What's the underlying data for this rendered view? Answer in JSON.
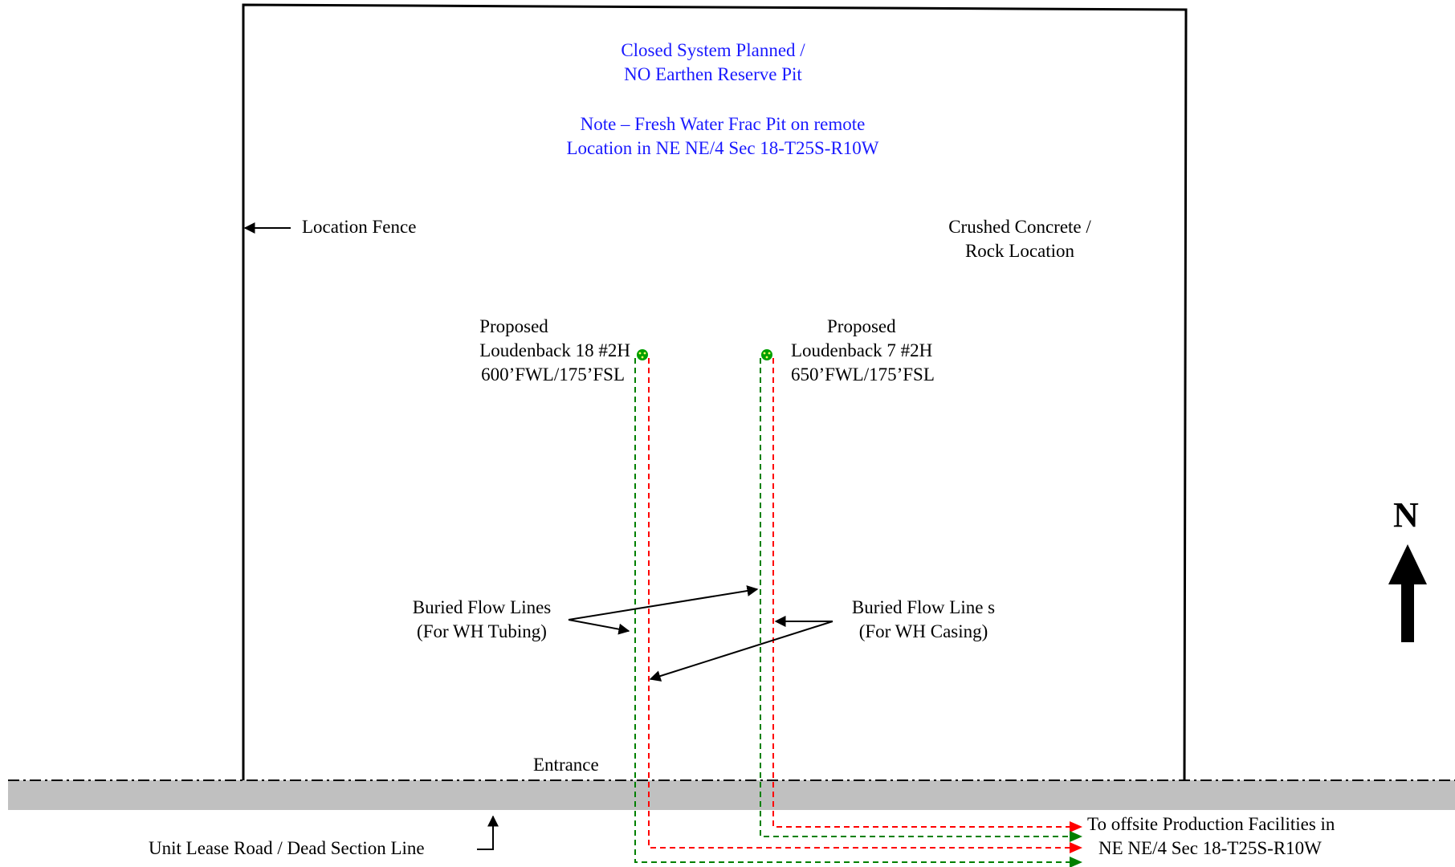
{
  "title_note": {
    "line1": "Closed System Planned /",
    "line2": "NO Earthen Reserve Pit",
    "line3": "Note – Fresh Water Frac Pit on remote",
    "line4": "Location in NE NE/4 Sec 18-T25S-R10W"
  },
  "labels": {
    "location_fence": "Location Fence",
    "surface_line1": "Crushed Concrete /",
    "surface_line2": "Rock Location",
    "entrance": "Entrance",
    "road": "Unit Lease Road / Dead Section Line",
    "offsite_line1": "To offsite Production Facilities in",
    "offsite_line2": "NE NE/4 Sec 18-T25S-R10W",
    "north": "N"
  },
  "wells": [
    {
      "status": "Proposed",
      "name": "Loudenback 18 #2H",
      "location": "600’FWL/175’FSL"
    },
    {
      "status": "Proposed",
      "name": "Loudenback 7 #2H",
      "location": "650’FWL/175’FSL"
    }
  ],
  "flow_lines": {
    "tubing": {
      "line1": "Buried Flow Lines",
      "line2": "(For WH Tubing)"
    },
    "casing": {
      "line1": "Buried Flow Line s",
      "line2": "(For WH Casing)"
    }
  },
  "colors": {
    "note_text": "#1a1aff",
    "road_fill": "#c0c0c0",
    "tubing_line": "#ff0000",
    "casing_line": "#008000",
    "wellhead": "#00a000"
  }
}
